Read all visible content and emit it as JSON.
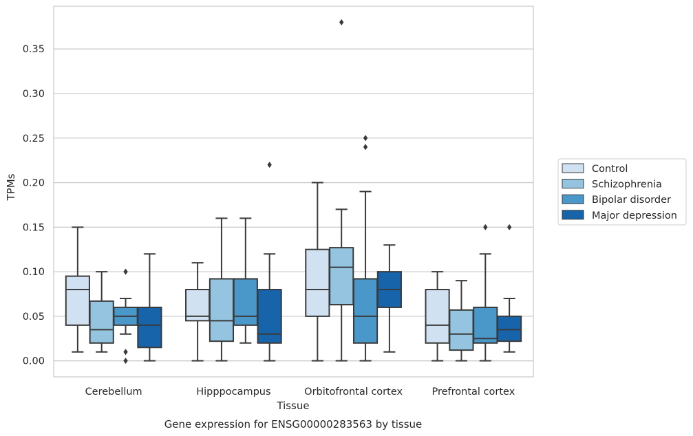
{
  "chart_data": {
    "type": "box",
    "caption": "Gene expression for ENSG00000283563 by tissue",
    "xlabel": "Tissue",
    "ylabel": "TPMs",
    "ylim": [
      -0.018,
      0.398
    ],
    "yticks": [
      "0.00",
      "0.05",
      "0.10",
      "0.15",
      "0.20",
      "0.25",
      "0.30",
      "0.35"
    ],
    "grid": true,
    "legend_position": "right",
    "categories": [
      "Cerebellum",
      "Hipppocampus",
      "Orbitofrontal cortex",
      "Prefrontal cortex"
    ],
    "series": [
      {
        "name": "Control",
        "color": "#d0e1f2",
        "boxes": [
          {
            "whislo": 0.01,
            "q1": 0.04,
            "med": 0.08,
            "q3": 0.095,
            "whishi": 0.15,
            "fliers": []
          },
          {
            "whislo": 0.0,
            "q1": 0.045,
            "med": 0.05,
            "q3": 0.08,
            "whishi": 0.11,
            "fliers": []
          },
          {
            "whislo": 0.0,
            "q1": 0.05,
            "med": 0.08,
            "q3": 0.125,
            "whishi": 0.2,
            "fliers": []
          },
          {
            "whislo": 0.0,
            "q1": 0.02,
            "med": 0.04,
            "q3": 0.08,
            "whishi": 0.1,
            "fliers": []
          }
        ]
      },
      {
        "name": "Schizophrenia",
        "color": "#94c4df",
        "boxes": [
          {
            "whislo": 0.01,
            "q1": 0.02,
            "med": 0.035,
            "q3": 0.067,
            "whishi": 0.1,
            "fliers": []
          },
          {
            "whislo": 0.0,
            "q1": 0.022,
            "med": 0.045,
            "q3": 0.092,
            "whishi": 0.16,
            "fliers": []
          },
          {
            "whislo": 0.0,
            "q1": 0.063,
            "med": 0.105,
            "q3": 0.127,
            "whishi": 0.17,
            "fliers": [
              0.38
            ]
          },
          {
            "whislo": 0.0,
            "q1": 0.012,
            "med": 0.03,
            "q3": 0.057,
            "whishi": 0.09,
            "fliers": []
          }
        ]
      },
      {
        "name": "Bipolar disorder",
        "color": "#4a98c9",
        "boxes": [
          {
            "whislo": 0.03,
            "q1": 0.04,
            "med": 0.05,
            "q3": 0.06,
            "whishi": 0.07,
            "fliers": [
              0.1,
              0.01,
              0.0
            ]
          },
          {
            "whislo": 0.02,
            "q1": 0.04,
            "med": 0.05,
            "q3": 0.092,
            "whishi": 0.16,
            "fliers": []
          },
          {
            "whislo": 0.0,
            "q1": 0.02,
            "med": 0.05,
            "q3": 0.092,
            "whishi": 0.19,
            "fliers": [
              0.25,
              0.24
            ]
          },
          {
            "whislo": 0.0,
            "q1": 0.02,
            "med": 0.025,
            "q3": 0.06,
            "whishi": 0.12,
            "fliers": [
              0.15
            ]
          }
        ]
      },
      {
        "name": "Major depression",
        "color": "#1764ab",
        "boxes": [
          {
            "whislo": 0.0,
            "q1": 0.015,
            "med": 0.04,
            "q3": 0.06,
            "whishi": 0.12,
            "fliers": []
          },
          {
            "whislo": 0.0,
            "q1": 0.02,
            "med": 0.03,
            "q3": 0.08,
            "whishi": 0.12,
            "fliers": [
              0.22
            ]
          },
          {
            "whislo": 0.01,
            "q1": 0.06,
            "med": 0.08,
            "q3": 0.1,
            "whishi": 0.13,
            "fliers": []
          },
          {
            "whislo": 0.01,
            "q1": 0.022,
            "med": 0.035,
            "q3": 0.05,
            "whishi": 0.07,
            "fliers": [
              0.15
            ]
          }
        ]
      }
    ]
  }
}
